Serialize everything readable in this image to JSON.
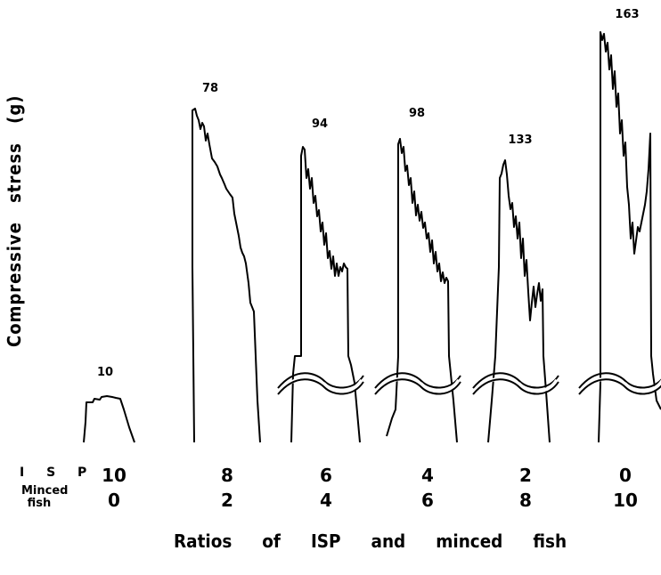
{
  "chart_data": {
    "type": "line",
    "ylabel": "Compressive stress (g)",
    "xlabel": "Ratios of ISP and minced fish",
    "row_labels": {
      "isp": "I S P",
      "minced_fish": "Minced fish"
    },
    "series": [
      {
        "isp": "10",
        "minced_fish": "0",
        "peak": "10",
        "axis_break": false
      },
      {
        "isp": "8",
        "minced_fish": "2",
        "peak": "78",
        "axis_break": false
      },
      {
        "isp": "6",
        "minced_fish": "4",
        "peak": "94",
        "axis_break": true
      },
      {
        "isp": "4",
        "minced_fish": "6",
        "peak": "98",
        "axis_break": true
      },
      {
        "isp": "2",
        "minced_fish": "8",
        "peak": "133",
        "axis_break": true
      },
      {
        "isp": "0",
        "minced_fish": "10",
        "peak": "163",
        "axis_break": true
      }
    ]
  }
}
